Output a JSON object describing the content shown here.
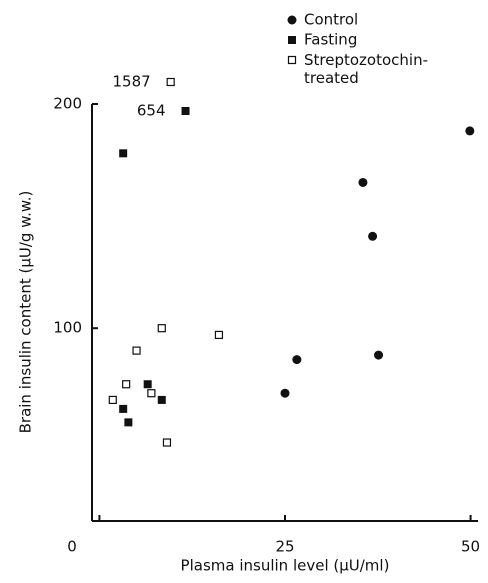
{
  "chart_data": {
    "type": "scatter",
    "x_label": "Plasma insulin level (μU/ml)",
    "y_label": "Brain insulin content (μU/g w.w.)",
    "xlim": [
      -1,
      51
    ],
    "ylim": [
      14,
      200
    ],
    "xticks": [
      0,
      25,
      50
    ],
    "yticks": [
      100,
      200
    ],
    "color": "#111111",
    "series": [
      {
        "name": "Control",
        "marker": "filled-circle",
        "x": [
          49.9,
          35.5,
          36.8,
          37.6,
          26.6,
          25.0
        ],
        "values": [
          188,
          165,
          141,
          88,
          86,
          71
        ]
      },
      {
        "name": "Fasting",
        "marker": "filled-square",
        "x": [
          3.2,
          6.5,
          8.4,
          3.2,
          3.9
        ],
        "values": [
          178,
          75,
          68,
          64,
          58
        ]
      },
      {
        "name": "Streptozotochin-treated",
        "marker": "open-square",
        "x": [
          1.8,
          3.6,
          5.0,
          8.4,
          7.0,
          9.1,
          16.1
        ],
        "values": [
          68,
          75,
          90,
          100,
          71,
          49,
          97
        ]
      }
    ],
    "offscale_points": [
      {
        "series": 1,
        "x": 11.6,
        "y": 654
      },
      {
        "series": 2,
        "x": 9.6,
        "y": 1587
      }
    ]
  }
}
